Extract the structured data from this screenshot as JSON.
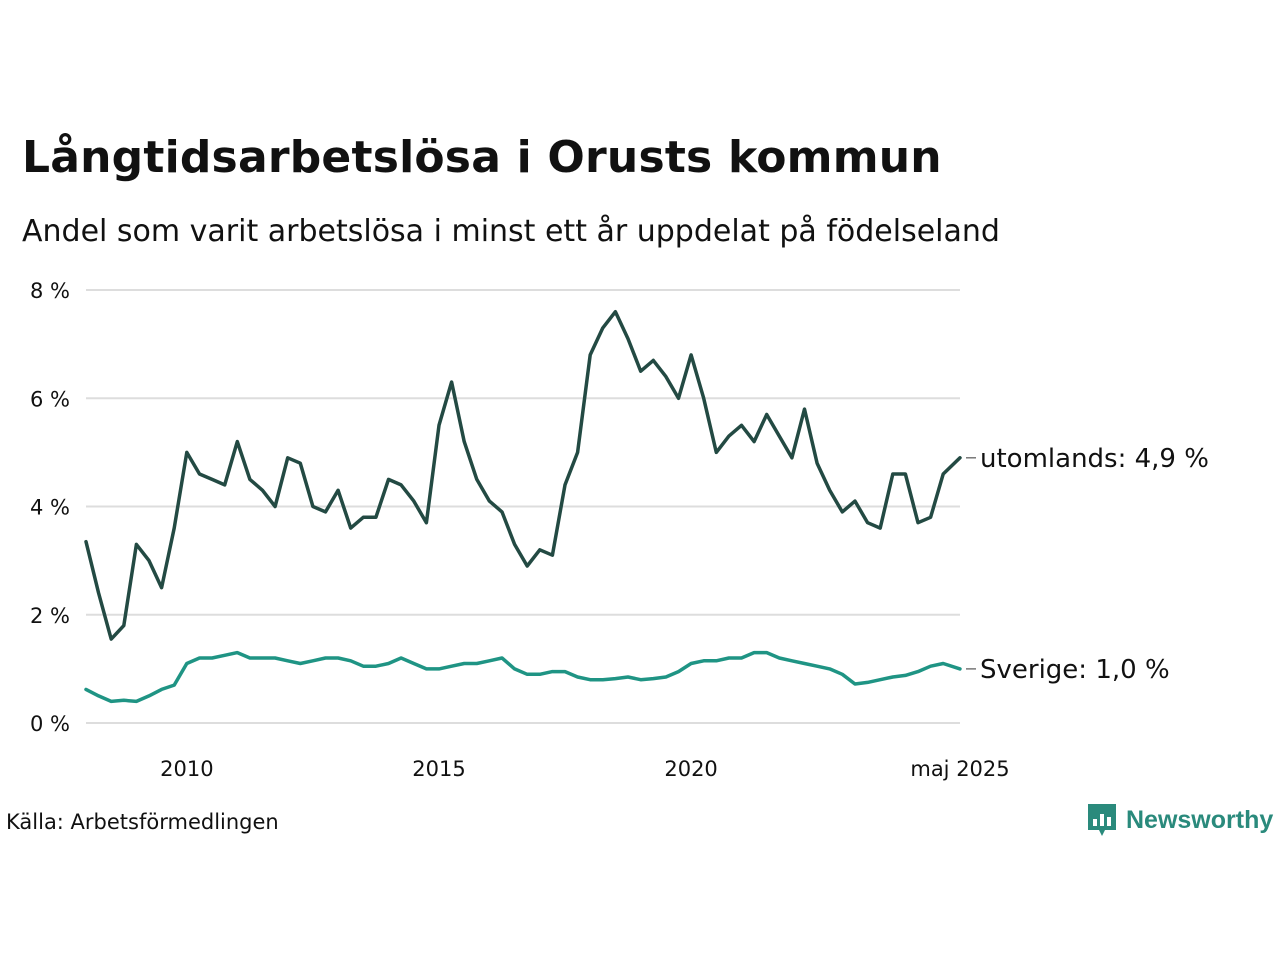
{
  "title": "Långtidsarbetslösa i Orusts kommun",
  "subtitle": "Andel som varit arbetslösa i minst ett år uppdelat på födelseland",
  "source": "Källa: Arbetsförmedlingen",
  "brand": {
    "name": "Newsworthy",
    "icon": "newsworthy-logo-icon",
    "color": "#2a8a7c"
  },
  "chart_data": {
    "type": "line",
    "title": "Långtidsarbetslösa i Orusts kommun",
    "subtitle": "Andel som varit arbetslösa i minst ett år uppdelat på födelseland",
    "xlabel": "",
    "ylabel": "",
    "ylim": [
      0,
      8
    ],
    "yticks": [
      0,
      2,
      4,
      6,
      8
    ],
    "ytick_labels": [
      "0 %",
      "2 %",
      "4 %",
      "6 %",
      "8 %"
    ],
    "xlim": [
      "2008-01",
      "2025-05"
    ],
    "xticks": [
      "2010-01",
      "2015-01",
      "2020-01",
      "2025-05"
    ],
    "xtick_labels": [
      "2010",
      "2015",
      "2020",
      "maj 2025"
    ],
    "grid": "horizontal",
    "legend": "direct labels at line ends, right",
    "series": [
      {
        "name": "utomlands",
        "end_label": "utomlands: 4,9 %",
        "color": "#234a43",
        "x": [
          "2008-01",
          "2008-04",
          "2008-07",
          "2008-10",
          "2009-01",
          "2009-04",
          "2009-07",
          "2009-10",
          "2010-01",
          "2010-04",
          "2010-07",
          "2010-10",
          "2011-01",
          "2011-04",
          "2011-07",
          "2011-10",
          "2012-01",
          "2012-04",
          "2012-07",
          "2012-10",
          "2013-01",
          "2013-04",
          "2013-07",
          "2013-10",
          "2014-01",
          "2014-04",
          "2014-07",
          "2014-10",
          "2015-01",
          "2015-04",
          "2015-07",
          "2015-10",
          "2016-01",
          "2016-04",
          "2016-07",
          "2016-10",
          "2017-01",
          "2017-04",
          "2017-07",
          "2017-10",
          "2018-01",
          "2018-04",
          "2018-07",
          "2018-10",
          "2019-01",
          "2019-04",
          "2019-07",
          "2019-10",
          "2020-01",
          "2020-04",
          "2020-07",
          "2020-10",
          "2021-01",
          "2021-04",
          "2021-07",
          "2021-10",
          "2022-01",
          "2022-04",
          "2022-07",
          "2022-10",
          "2023-01",
          "2023-04",
          "2023-07",
          "2023-10",
          "2024-01",
          "2024-04",
          "2024-07",
          "2024-10",
          "2025-01",
          "2025-05"
        ],
        "values": [
          3.35,
          2.4,
          1.55,
          1.8,
          3.3,
          3.0,
          2.5,
          3.6,
          5.0,
          4.6,
          4.5,
          4.4,
          5.2,
          4.5,
          4.3,
          4.0,
          4.9,
          4.8,
          4.0,
          3.9,
          4.3,
          3.6,
          3.8,
          3.8,
          4.5,
          4.4,
          4.1,
          3.7,
          5.5,
          6.3,
          5.2,
          4.5,
          4.1,
          3.9,
          3.3,
          2.9,
          3.2,
          3.1,
          4.4,
          5.0,
          6.8,
          7.3,
          7.6,
          7.1,
          6.5,
          6.7,
          6.4,
          6.0,
          6.8,
          6.0,
          5.0,
          5.3,
          5.5,
          5.2,
          5.7,
          5.3,
          4.9,
          5.8,
          4.8,
          4.3,
          3.9,
          4.1,
          3.7,
          3.6,
          4.6,
          4.6,
          3.7,
          3.8,
          4.6,
          4.9
        ]
      },
      {
        "name": "Sverige",
        "end_label": "Sverige: 1,0 %",
        "color": "#1f9484",
        "x": [
          "2008-01",
          "2008-04",
          "2008-07",
          "2008-10",
          "2009-01",
          "2009-04",
          "2009-07",
          "2009-10",
          "2010-01",
          "2010-04",
          "2010-07",
          "2010-10",
          "2011-01",
          "2011-04",
          "2011-07",
          "2011-10",
          "2012-01",
          "2012-04",
          "2012-07",
          "2012-10",
          "2013-01",
          "2013-04",
          "2013-07",
          "2013-10",
          "2014-01",
          "2014-04",
          "2014-07",
          "2014-10",
          "2015-01",
          "2015-04",
          "2015-07",
          "2015-10",
          "2016-01",
          "2016-04",
          "2016-07",
          "2016-10",
          "2017-01",
          "2017-04",
          "2017-07",
          "2017-10",
          "2018-01",
          "2018-04",
          "2018-07",
          "2018-10",
          "2019-01",
          "2019-04",
          "2019-07",
          "2019-10",
          "2020-01",
          "2020-04",
          "2020-07",
          "2020-10",
          "2021-01",
          "2021-04",
          "2021-07",
          "2021-10",
          "2022-01",
          "2022-04",
          "2022-07",
          "2022-10",
          "2023-01",
          "2023-04",
          "2023-07",
          "2023-10",
          "2024-01",
          "2024-04",
          "2024-07",
          "2024-10",
          "2025-01",
          "2025-05"
        ],
        "values": [
          0.62,
          0.5,
          0.4,
          0.42,
          0.4,
          0.5,
          0.62,
          0.7,
          1.1,
          1.2,
          1.2,
          1.25,
          1.3,
          1.2,
          1.2,
          1.2,
          1.15,
          1.1,
          1.15,
          1.2,
          1.2,
          1.15,
          1.05,
          1.05,
          1.1,
          1.2,
          1.1,
          1.0,
          1.0,
          1.05,
          1.1,
          1.1,
          1.15,
          1.2,
          1.0,
          0.9,
          0.9,
          0.95,
          0.95,
          0.85,
          0.8,
          0.8,
          0.82,
          0.85,
          0.8,
          0.82,
          0.85,
          0.95,
          1.1,
          1.15,
          1.15,
          1.2,
          1.2,
          1.3,
          1.3,
          1.2,
          1.15,
          1.1,
          1.05,
          1.0,
          0.9,
          0.72,
          0.75,
          0.8,
          0.85,
          0.88,
          0.95,
          1.05,
          1.1,
          1.0
        ]
      }
    ]
  }
}
